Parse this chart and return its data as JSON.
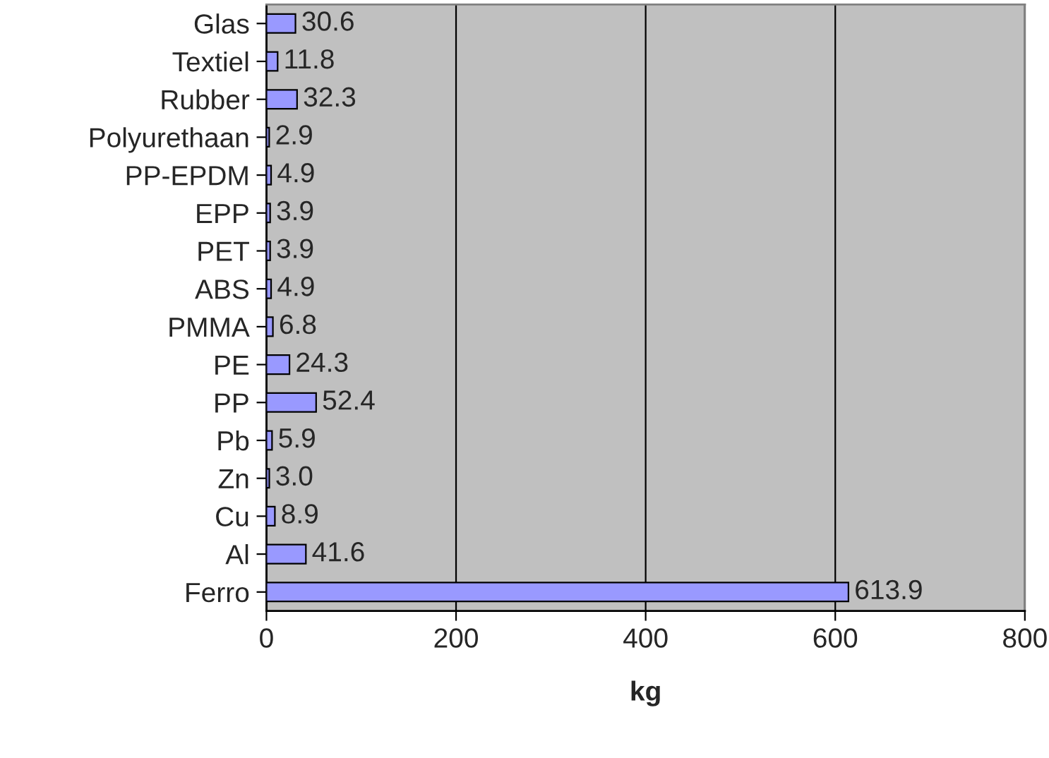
{
  "chart_data": {
    "type": "bar",
    "orientation": "horizontal",
    "xlabel": "kg",
    "categories": [
      "Glas",
      "Textiel",
      "Rubber",
      "Polyurethaan",
      "PP-EPDM",
      "EPP",
      "PET",
      "ABS",
      "PMMA",
      "PE",
      "PP",
      "Pb",
      "Zn",
      "Cu",
      "Al",
      "Ferro"
    ],
    "values": [
      30.6,
      11.8,
      32.3,
      2.9,
      4.9,
      3.9,
      3.9,
      4.9,
      6.8,
      24.3,
      52.4,
      5.9,
      3.0,
      8.9,
      41.6,
      613.9
    ],
    "value_labels": [
      "30.6",
      "11.8",
      "32.3",
      "2.9",
      "4.9",
      "3.9",
      "3.9",
      "4.9",
      "6.8",
      "24.3",
      "52.4",
      "5.9",
      "3.0",
      "8.9",
      "41.6",
      "613.9"
    ],
    "color": "#9999ff",
    "xlim": [
      0,
      800
    ],
    "xticks": [
      0,
      200,
      400,
      600,
      800
    ],
    "grid": "x",
    "legend": false
  }
}
